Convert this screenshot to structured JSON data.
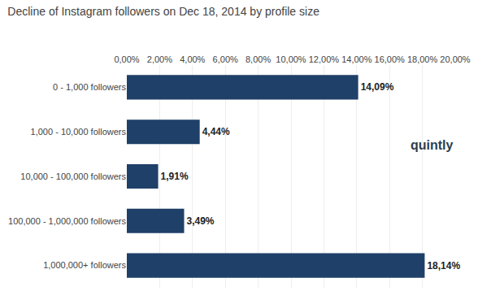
{
  "chart_data": {
    "type": "bar",
    "orientation": "horizontal",
    "title": "Decline of Instagram followers on Dec 18, 2014 by profile size",
    "categories": [
      "0 - 1,000 followers",
      "1,000 - 10,000 followers",
      "10,000 - 100,000 followers",
      "100,000 - 1,000,000 followers",
      "1,000,000+ followers"
    ],
    "values": [
      14.09,
      4.44,
      1.91,
      3.49,
      18.14
    ],
    "value_labels": [
      "14,09%",
      "4,44%",
      "1,91%",
      "3,49%",
      "18,14%"
    ],
    "data_labels": true,
    "color": "#1f4068",
    "xlim": [
      0,
      20
    ],
    "xticks": [
      {
        "value": 0,
        "label": "0,00%"
      },
      {
        "value": 2,
        "label": "2,00%"
      },
      {
        "value": 4,
        "label": "4,00%"
      },
      {
        "value": 6,
        "label": "6,00%"
      },
      {
        "value": 8,
        "label": "8,00%"
      },
      {
        "value": 10,
        "label": "10,00%"
      },
      {
        "value": 12,
        "label": "12,00%"
      },
      {
        "value": 14,
        "label": "14,00%"
      },
      {
        "value": 16,
        "label": "16,00%"
      },
      {
        "value": 18,
        "label": "18,00%"
      },
      {
        "value": 20,
        "label": "20,00%"
      }
    ],
    "grid": true,
    "annotations": [
      {
        "text": "quintly"
      }
    ]
  }
}
